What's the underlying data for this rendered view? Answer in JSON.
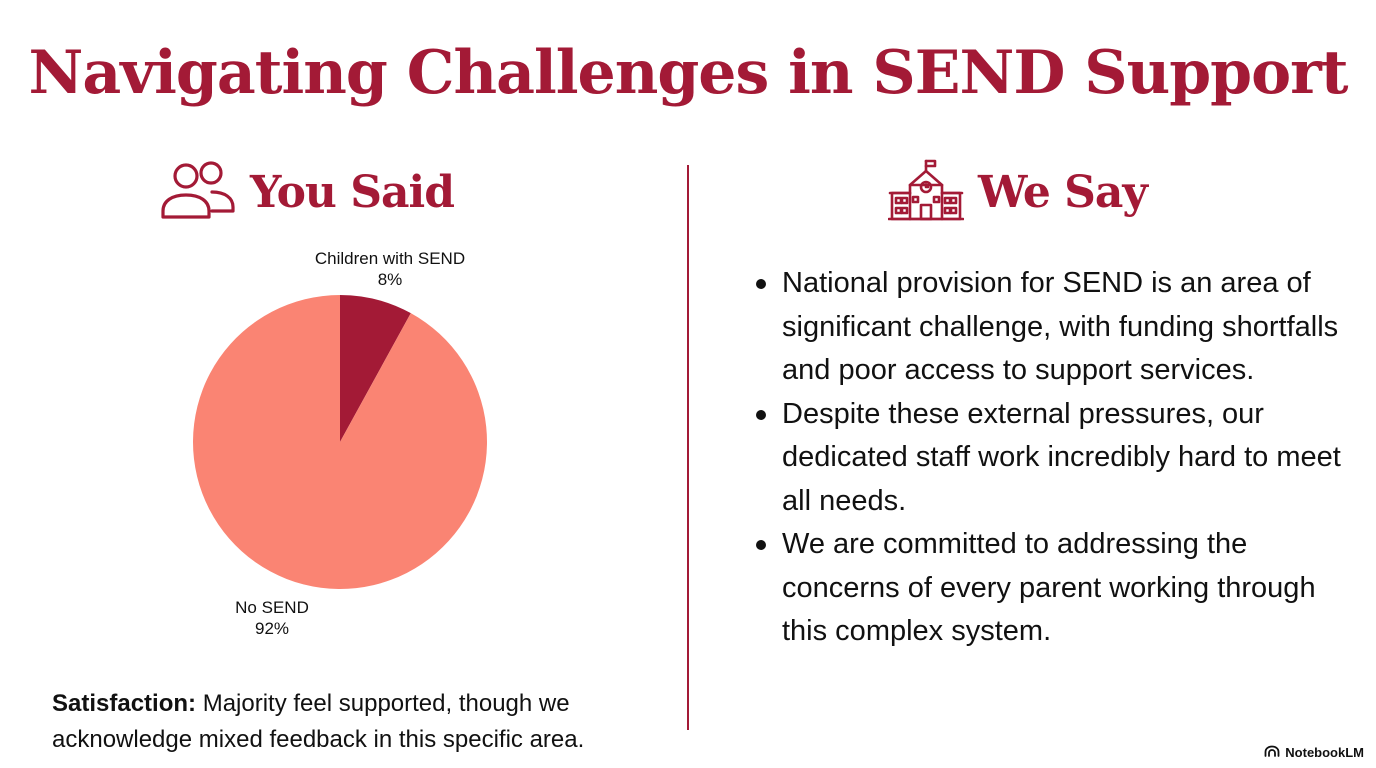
{
  "title": "Navigating Challenges in SEND Support",
  "left": {
    "heading": "You Said",
    "icon": "users-icon",
    "satisfaction_label": "Satisfaction:",
    "satisfaction_text": " Majority feel supported, though we acknowledge mixed feedback in this specific area."
  },
  "right": {
    "heading": "We Say",
    "icon": "school-icon",
    "bullets": [
      "National provision for SEND is an area of significant challenge, with funding shortfalls and poor access to support services.",
      "Despite these external pressures, our dedicated staff work incredibly hard to meet all needs.",
      "We are committed to addressing the concerns of every parent working through this complex system."
    ]
  },
  "chart_data": {
    "type": "pie",
    "slices": [
      {
        "label": "Children with SEND",
        "value": 8,
        "display": "8%",
        "color": "#a31a36"
      },
      {
        "label": "No SEND",
        "value": 92,
        "display": "92%",
        "color": "#fa8473"
      }
    ]
  },
  "brand": {
    "name": "NotebookLM",
    "icon": "notebooklm-logo-icon"
  },
  "colors": {
    "accent": "#a31a36",
    "pie_main": "#fa8473"
  }
}
